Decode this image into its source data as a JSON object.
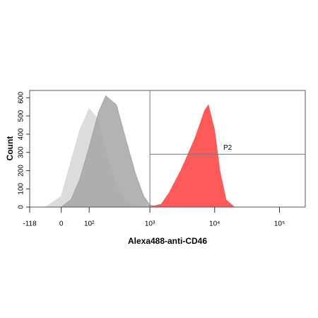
{
  "chart_data": {
    "type": "area",
    "x_label": "Alexa488-anti-CD46",
    "y_label": "Count",
    "x_scale": "biexponential",
    "x": [
      -50,
      0,
      30,
      60,
      100,
      150,
      200,
      300,
      400,
      600,
      800,
      1000,
      1500,
      2000,
      3000,
      4000,
      5000,
      6000,
      7000,
      8000,
      10000,
      12000,
      15000,
      20000
    ],
    "series": [
      {
        "color": "#dcdcdc",
        "values": [
          0,
          60,
          250,
          420,
          540,
          480,
          300,
          120,
          40,
          10,
          0,
          0,
          0,
          0,
          0,
          0,
          0,
          0,
          0,
          0,
          0,
          0,
          0,
          0
        ]
      },
      {
        "color": "#a6a6a6",
        "values": [
          0,
          0,
          40,
          150,
          330,
          520,
          610,
          560,
          400,
          180,
          60,
          10,
          0,
          0,
          0,
          0,
          0,
          0,
          0,
          0,
          0,
          0,
          0,
          0
        ]
      },
      {
        "color": "#ff5a5a",
        "values": [
          0,
          0,
          0,
          0,
          0,
          0,
          0,
          0,
          0,
          0,
          0,
          0,
          15,
          80,
          200,
          300,
          380,
          460,
          530,
          560,
          420,
          200,
          40,
          0
        ]
      }
    ],
    "xlim": [
      -118,
      250000
    ],
    "ylim": [
      0,
      640
    ],
    "xticks": [
      -118,
      0,
      {
        "value": 100,
        "label": "10²"
      },
      {
        "value": 1000,
        "label": "10³"
      },
      {
        "value": 10000,
        "label": "10⁴"
      },
      {
        "value": 100000,
        "label": "10⁵"
      }
    ],
    "yticks": [
      0,
      100,
      200,
      300,
      400,
      500,
      600
    ],
    "gate": {
      "label": "P2",
      "x": 1000,
      "y": 290
    }
  }
}
